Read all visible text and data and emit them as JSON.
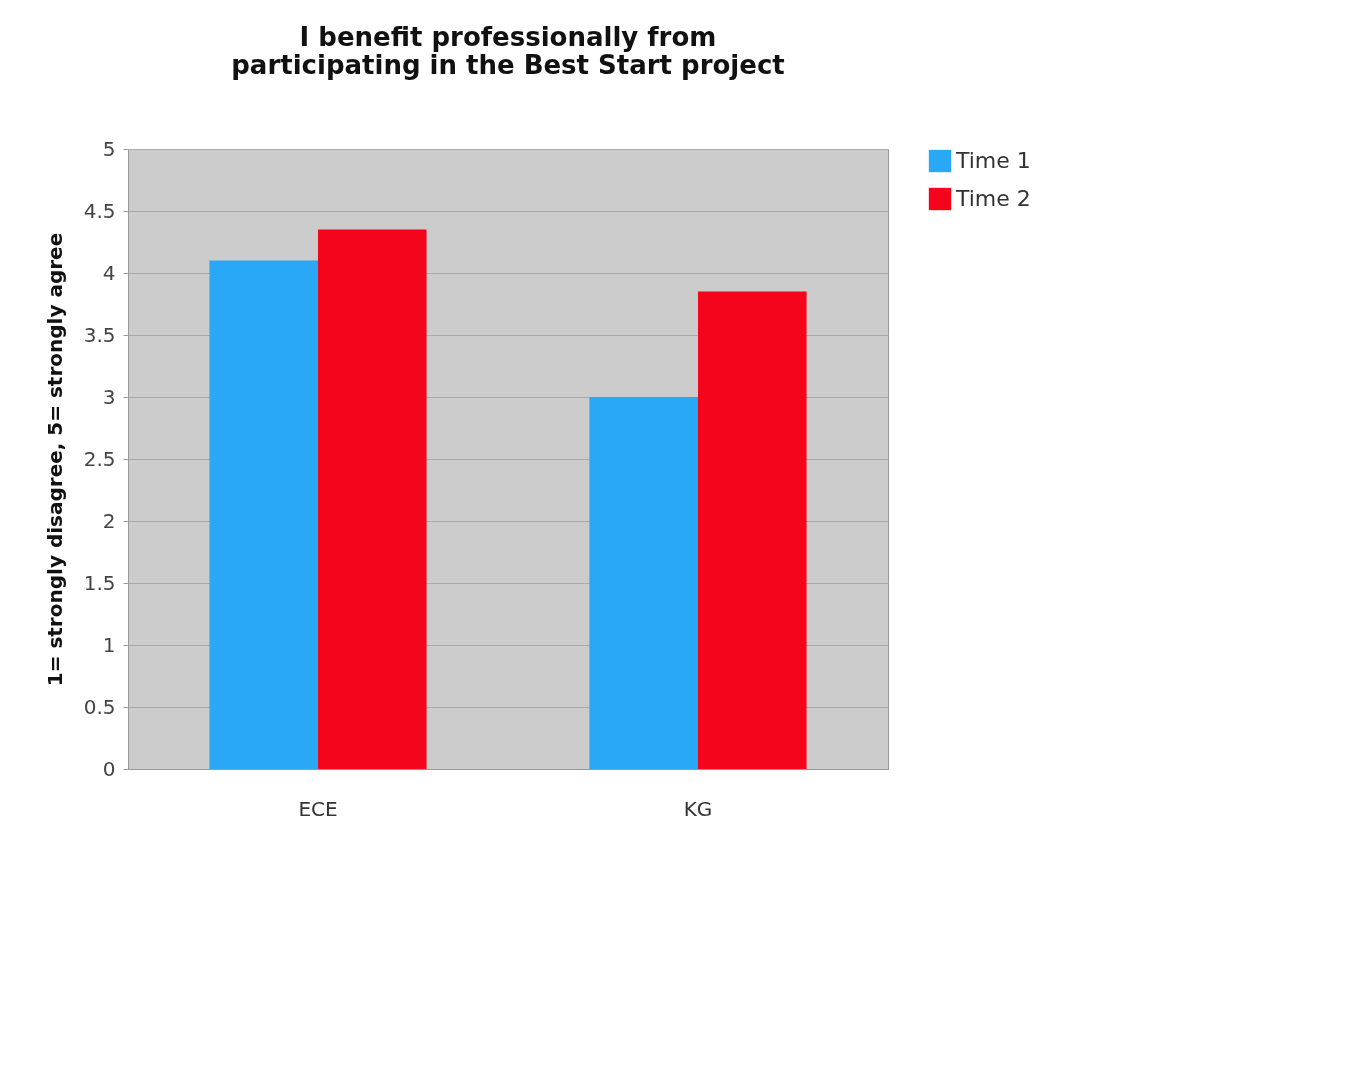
{
  "chart_data": {
    "type": "bar",
    "title": "I benefit professionally from participating in the Best Start project",
    "ylabel": "1= strongly disagree, 5= strongly agree",
    "categories": [
      "ECE",
      "KG"
    ],
    "series": [
      {
        "name": "Time 1",
        "color": "#29a8f5",
        "values": [
          4.1,
          3.0
        ]
      },
      {
        "name": "Time 2",
        "color": "#f5051b",
        "values": [
          4.35,
          3.85
        ]
      }
    ],
    "ylim": [
      0,
      5
    ],
    "yticks": [
      0,
      0.5,
      1,
      1.5,
      2,
      2.5,
      3,
      3.5,
      4,
      4.5,
      5
    ],
    "grid": "y",
    "legend": "right"
  }
}
